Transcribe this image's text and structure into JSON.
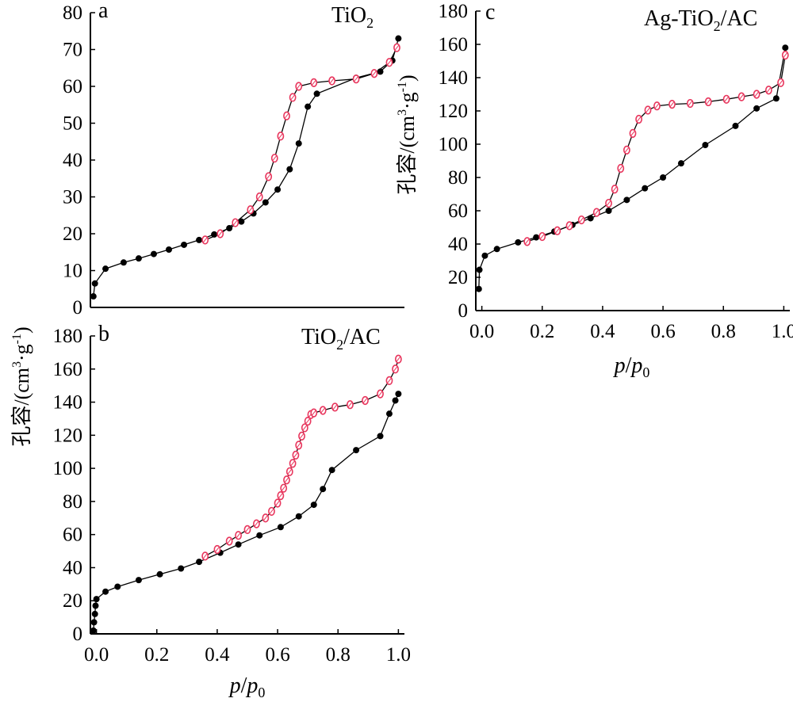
{
  "chart_data": [
    {
      "type": "line",
      "panel_letter": "a",
      "title_main": "TiO",
      "title_sub": "2",
      "title_tail": "",
      "ylabel_text": "孔容/(cm",
      "ylabel_sup1": "3",
      "ylabel_mid": "·g",
      "ylabel_sup2": "-1",
      "ylabel_end": ")",
      "xlim": [
        -0.02,
        1.02
      ],
      "ylim": [
        0,
        80
      ],
      "yticks": [
        "0",
        "10",
        "20",
        "30",
        "40",
        "50",
        "60",
        "70",
        "80"
      ],
      "xticks": [],
      "series": [
        {
          "marker": "filled",
          "color": "#000000",
          "x": [
            -0.01,
            -0.005,
            0.03,
            0.09,
            0.14,
            0.19,
            0.24,
            0.29,
            0.34,
            0.39,
            0.44,
            0.48,
            0.52,
            0.56,
            0.6,
            0.64,
            0.67,
            0.7,
            0.73,
            0.86,
            0.94,
            0.98,
            1.0
          ],
          "y": [
            3,
            6.5,
            10.5,
            12.2,
            13.3,
            14.5,
            15.7,
            17,
            18.3,
            19.8,
            21.5,
            23.3,
            25.5,
            28.5,
            32,
            37.5,
            44.5,
            54.5,
            58,
            62.3,
            64,
            67,
            73
          ]
        },
        {
          "marker": "open",
          "color": "#e8365d",
          "x": [
            0.36,
            0.41,
            0.46,
            0.51,
            0.54,
            0.57,
            0.59,
            0.61,
            0.63,
            0.65,
            0.67,
            0.72,
            0.78,
            0.86,
            0.92,
            0.97,
            0.995
          ],
          "y": [
            18.3,
            20,
            23,
            26.5,
            30,
            35.5,
            40.5,
            46.5,
            52,
            57,
            60,
            61,
            61.5,
            62,
            63.5,
            66.5,
            70.5
          ]
        }
      ]
    },
    {
      "type": "line",
      "panel_letter": "b",
      "title_main": "TiO",
      "title_sub": "2",
      "title_tail": "/AC",
      "ylabel_text": "",
      "ylabel_sup1": "",
      "ylabel_mid": "",
      "ylabel_sup2": "",
      "ylabel_end": "",
      "xlim": [
        -0.02,
        1.02
      ],
      "ylim": [
        0,
        180
      ],
      "yticks": [
        "0",
        "20",
        "40",
        "60",
        "80",
        "100",
        "120",
        "140",
        "160",
        "180"
      ],
      "xticks": [
        "0.0",
        "0.2",
        "0.4",
        "0.6",
        "0.8",
        "1.0"
      ],
      "xlabel_p": "p",
      "xlabel_slash": "/",
      "xlabel_p0": "p",
      "xlabel_sub": "0",
      "series": [
        {
          "marker": "filled",
          "color": "#000000",
          "x": [
            -0.01,
            -0.008,
            -0.005,
            -0.003,
            0.0,
            0.03,
            0.07,
            0.14,
            0.21,
            0.28,
            0.34,
            0.41,
            0.47,
            0.54,
            0.61,
            0.67,
            0.72,
            0.75,
            0.78,
            0.86,
            0.94,
            0.97,
            0.99,
            1.0
          ],
          "y": [
            2,
            7,
            12,
            17,
            21,
            25.5,
            28.5,
            32.5,
            36,
            39.5,
            43.5,
            49,
            54,
            59.5,
            64.5,
            71,
            78,
            87.5,
            99,
            111,
            119.5,
            133,
            141,
            145
          ]
        },
        {
          "marker": "open",
          "color": "#e8365d",
          "x": [
            0.36,
            0.4,
            0.44,
            0.47,
            0.5,
            0.53,
            0.56,
            0.58,
            0.6,
            0.61,
            0.62,
            0.63,
            0.64,
            0.65,
            0.66,
            0.67,
            0.68,
            0.69,
            0.7,
            0.71,
            0.72,
            0.75,
            0.79,
            0.84,
            0.89,
            0.94,
            0.97,
            0.99,
            1.0
          ],
          "y": [
            47,
            51,
            56,
            59.5,
            63,
            66.5,
            70,
            74,
            79,
            83.5,
            88,
            93,
            98,
            103,
            108,
            114,
            119.5,
            124.5,
            128.5,
            132.5,
            133.5,
            135,
            137,
            138.5,
            141,
            145,
            153,
            160,
            166
          ]
        }
      ]
    },
    {
      "type": "line",
      "panel_letter": "c",
      "title_main": "Ag-TiO",
      "title_sub": "2",
      "title_tail": "/AC",
      "ylabel_text": "孔容/(cm",
      "ylabel_sup1": "3",
      "ylabel_mid": "·g",
      "ylabel_sup2": "-1",
      "ylabel_end": ")",
      "xlim": [
        -0.02,
        1.02
      ],
      "ylim": [
        0,
        180
      ],
      "yticks": [
        "0",
        "20",
        "40",
        "60",
        "80",
        "100",
        "120",
        "140",
        "160",
        "180"
      ],
      "xticks": [
        "0.0",
        "0.2",
        "0.4",
        "0.6",
        "0.8",
        "1.0"
      ],
      "xlabel_p": "p",
      "xlabel_slash": "/",
      "xlabel_p0": "p",
      "xlabel_sub": "0",
      "series": [
        {
          "marker": "filled",
          "color": "#000000",
          "x": [
            -0.01,
            -0.008,
            0.01,
            0.05,
            0.12,
            0.18,
            0.24,
            0.3,
            0.36,
            0.42,
            0.48,
            0.54,
            0.6,
            0.66,
            0.74,
            0.84,
            0.91,
            0.975,
            1.005
          ],
          "y": [
            13,
            24.5,
            33,
            37,
            41,
            44,
            47.5,
            51.5,
            55.5,
            60,
            66.5,
            73.5,
            80,
            88.5,
            99.5,
            111,
            121.5,
            127.5,
            158
          ]
        },
        {
          "marker": "open",
          "color": "#e8365d",
          "x": [
            0.15,
            0.2,
            0.25,
            0.29,
            0.33,
            0.38,
            0.42,
            0.44,
            0.46,
            0.48,
            0.5,
            0.52,
            0.55,
            0.58,
            0.63,
            0.69,
            0.75,
            0.81,
            0.86,
            0.91,
            0.95,
            0.99,
            1.005
          ],
          "y": [
            41.5,
            44.5,
            48,
            51,
            54.5,
            59,
            64.5,
            73,
            85.5,
            96.5,
            106.5,
            115,
            120.5,
            123,
            124,
            124.5,
            125.5,
            127,
            128.5,
            130,
            132.5,
            137,
            153.5
          ]
        }
      ]
    }
  ]
}
